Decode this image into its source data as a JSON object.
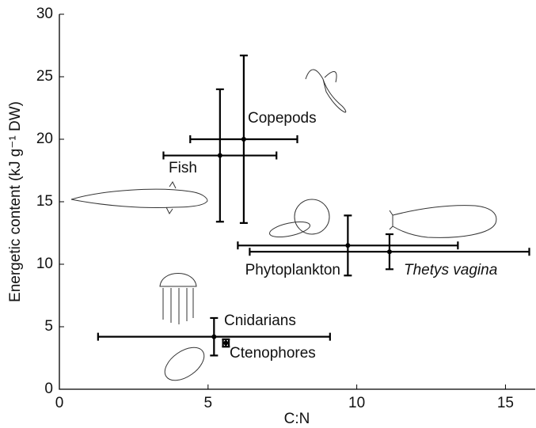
{
  "chart_data": {
    "type": "errorbar-scatter",
    "xlabel": "C:N",
    "ylabel": "Energetic content (kJ g⁻¹ DW)",
    "xlim": [
      0,
      16
    ],
    "ylim": [
      0,
      30
    ],
    "xticks": [
      0,
      5,
      10,
      15
    ],
    "yticks": [
      0,
      5,
      10,
      15,
      20,
      25,
      30
    ],
    "color": "#000000",
    "series": [
      {
        "name": "Copepods",
        "x": 6.2,
        "y": 20.0,
        "xerr": 1.8,
        "yerr": 6.7
      },
      {
        "name": "Fish",
        "x": 5.4,
        "y": 18.7,
        "xerr": 1.9,
        "yerr": 5.3
      },
      {
        "name": "Phytoplankton",
        "x": 9.7,
        "y": 11.5,
        "xerr": 3.7,
        "yerr": 2.4
      },
      {
        "name": "Thetys vagina",
        "x": 11.1,
        "y": 11.0,
        "xerr": 4.7,
        "yerr": 1.4
      },
      {
        "name": "Cnidarians",
        "x": 5.2,
        "y": 4.2,
        "xerr": 3.9,
        "yerr": 1.5
      },
      {
        "name": "Ctenophores",
        "x": 5.6,
        "y": 3.7,
        "xerr": 0.1,
        "yerr": 0.3
      }
    ]
  }
}
